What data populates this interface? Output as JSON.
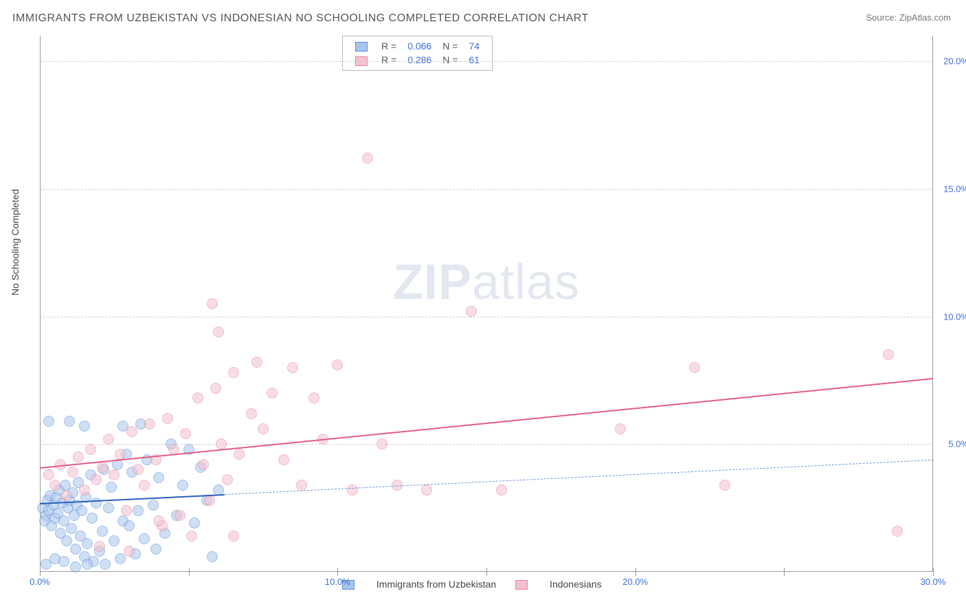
{
  "title": "IMMIGRANTS FROM UZBEKISTAN VS INDONESIAN NO SCHOOLING COMPLETED CORRELATION CHART",
  "source_label": "Source: ZipAtlas.com",
  "ylabel": "No Schooling Completed",
  "watermark_bold": "ZIP",
  "watermark_rest": "atlas",
  "chart": {
    "type": "scatter",
    "background_color": "#ffffff",
    "grid_color": "#d0d0d0",
    "axis_color": "#999999",
    "tick_label_color": "#3b6fd6",
    "title_color": "#555555",
    "title_fontsize": 16,
    "label_fontsize": 14,
    "tick_fontsize": 13,
    "xlim": [
      0,
      30
    ],
    "ylim": [
      0,
      21
    ],
    "xticks": [
      0,
      10,
      20,
      30
    ],
    "xtick_labels": [
      "0.0%",
      "10.0%",
      "20.0%",
      "30.0%"
    ],
    "xtick_minor": [
      5,
      15,
      25
    ],
    "yticks": [
      5,
      10,
      15,
      20
    ],
    "ytick_labels": [
      "5.0%",
      "10.0%",
      "15.0%",
      "20.0%"
    ],
    "marker_radius": 8,
    "marker_opacity": 0.55,
    "series": [
      {
        "name": "Immigrants from Uzbekistan",
        "fill": "#a8c5ec",
        "stroke": "#5a8bd4",
        "r_value": "0.066",
        "n_value": "74",
        "trend": {
          "x1": 0,
          "y1": 2.7,
          "x2": 6.2,
          "y2": 3.05,
          "x2_ext": 30,
          "y2_ext": 4.4,
          "solid_color": "#2b5fbf",
          "dash_color": "#6a94d8",
          "width": 2
        },
        "points": [
          [
            0.1,
            2.5
          ],
          [
            0.2,
            2.2
          ],
          [
            0.15,
            2.0
          ],
          [
            0.25,
            2.8
          ],
          [
            0.3,
            2.4
          ],
          [
            0.35,
            3.0
          ],
          [
            0.4,
            1.8
          ],
          [
            0.45,
            2.6
          ],
          [
            0.5,
            2.1
          ],
          [
            0.55,
            2.9
          ],
          [
            0.6,
            2.3
          ],
          [
            0.65,
            3.2
          ],
          [
            0.7,
            1.5
          ],
          [
            0.75,
            2.7
          ],
          [
            0.8,
            2.0
          ],
          [
            0.85,
            3.4
          ],
          [
            0.9,
            1.2
          ],
          [
            0.95,
            2.5
          ],
          [
            1.0,
            2.8
          ],
          [
            1.05,
            1.7
          ],
          [
            1.1,
            3.1
          ],
          [
            1.15,
            2.2
          ],
          [
            1.2,
            0.9
          ],
          [
            1.25,
            2.6
          ],
          [
            1.3,
            3.5
          ],
          [
            1.35,
            1.4
          ],
          [
            1.4,
            2.4
          ],
          [
            1.5,
            0.6
          ],
          [
            1.55,
            2.9
          ],
          [
            1.6,
            1.1
          ],
          [
            1.7,
            3.8
          ],
          [
            1.75,
            2.1
          ],
          [
            1.8,
            0.4
          ],
          [
            1.9,
            2.7
          ],
          [
            2.0,
            0.8
          ],
          [
            2.1,
            1.6
          ],
          [
            2.15,
            4.0
          ],
          [
            2.2,
            0.3
          ],
          [
            2.3,
            2.5
          ],
          [
            2.4,
            3.3
          ],
          [
            2.5,
            1.2
          ],
          [
            2.6,
            4.2
          ],
          [
            2.7,
            0.5
          ],
          [
            2.8,
            2.0
          ],
          [
            2.9,
            4.6
          ],
          [
            3.0,
            1.8
          ],
          [
            3.1,
            3.9
          ],
          [
            3.2,
            0.7
          ],
          [
            3.3,
            2.4
          ],
          [
            3.4,
            5.8
          ],
          [
            3.5,
            1.3
          ],
          [
            3.6,
            4.4
          ],
          [
            3.8,
            2.6
          ],
          [
            3.9,
            0.9
          ],
          [
            4.0,
            3.7
          ],
          [
            4.2,
            1.5
          ],
          [
            4.4,
            5.0
          ],
          [
            4.6,
            2.2
          ],
          [
            4.8,
            3.4
          ],
          [
            5.0,
            4.8
          ],
          [
            5.2,
            1.9
          ],
          [
            5.4,
            4.1
          ],
          [
            5.6,
            2.8
          ],
          [
            5.8,
            0.6
          ],
          [
            6.0,
            3.2
          ],
          [
            1.0,
            5.9
          ],
          [
            1.5,
            5.7
          ],
          [
            2.8,
            5.7
          ],
          [
            0.3,
            5.9
          ],
          [
            0.2,
            0.3
          ],
          [
            0.5,
            0.5
          ],
          [
            0.8,
            0.4
          ],
          [
            1.2,
            0.2
          ],
          [
            1.6,
            0.3
          ]
        ]
      },
      {
        "name": "Indonesians",
        "fill": "#f4c1cd",
        "stroke": "#e584a0",
        "r_value": "0.286",
        "n_value": "61",
        "trend": {
          "x1": 0,
          "y1": 4.1,
          "x2": 30,
          "y2": 7.6,
          "solid_color": "#e15b86",
          "width": 2
        },
        "points": [
          [
            0.3,
            3.8
          ],
          [
            0.5,
            3.4
          ],
          [
            0.7,
            4.2
          ],
          [
            0.9,
            3.0
          ],
          [
            1.1,
            3.9
          ],
          [
            1.3,
            4.5
          ],
          [
            1.5,
            3.2
          ],
          [
            1.7,
            4.8
          ],
          [
            1.9,
            3.6
          ],
          [
            2.1,
            4.1
          ],
          [
            2.3,
            5.2
          ],
          [
            2.5,
            3.8
          ],
          [
            2.7,
            4.6
          ],
          [
            2.9,
            2.4
          ],
          [
            3.1,
            5.5
          ],
          [
            3.3,
            4.0
          ],
          [
            3.5,
            3.4
          ],
          [
            3.7,
            5.8
          ],
          [
            3.9,
            4.4
          ],
          [
            4.1,
            1.8
          ],
          [
            4.3,
            6.0
          ],
          [
            4.5,
            4.8
          ],
          [
            4.7,
            2.2
          ],
          [
            4.9,
            5.4
          ],
          [
            5.1,
            1.4
          ],
          [
            5.3,
            6.8
          ],
          [
            5.5,
            4.2
          ],
          [
            5.7,
            2.8
          ],
          [
            5.9,
            7.2
          ],
          [
            6.1,
            5.0
          ],
          [
            6.3,
            3.6
          ],
          [
            6.5,
            7.8
          ],
          [
            6.7,
            4.6
          ],
          [
            6.0,
            9.4
          ],
          [
            7.1,
            6.2
          ],
          [
            7.3,
            8.2
          ],
          [
            7.5,
            5.6
          ],
          [
            7.8,
            7.0
          ],
          [
            8.2,
            4.4
          ],
          [
            8.5,
            8.0
          ],
          [
            8.8,
            3.4
          ],
          [
            9.2,
            6.8
          ],
          [
            9.5,
            5.2
          ],
          [
            10.0,
            8.1
          ],
          [
            10.5,
            3.2
          ],
          [
            11.0,
            16.2
          ],
          [
            11.5,
            5.0
          ],
          [
            12.0,
            3.4
          ],
          [
            13.0,
            3.2
          ],
          [
            14.5,
            10.2
          ],
          [
            15.5,
            3.2
          ],
          [
            19.5,
            5.6
          ],
          [
            22.0,
            8.0
          ],
          [
            23.0,
            3.4
          ],
          [
            28.5,
            8.5
          ],
          [
            28.8,
            1.6
          ],
          [
            5.8,
            10.5
          ],
          [
            4.0,
            2.0
          ],
          [
            2.0,
            1.0
          ],
          [
            3.0,
            0.8
          ],
          [
            6.5,
            1.4
          ]
        ]
      }
    ]
  },
  "legend_top": {
    "cols": [
      "R =",
      "N ="
    ]
  },
  "legend_bottom": {
    "items": [
      "Immigrants from Uzbekistan",
      "Indonesians"
    ]
  }
}
